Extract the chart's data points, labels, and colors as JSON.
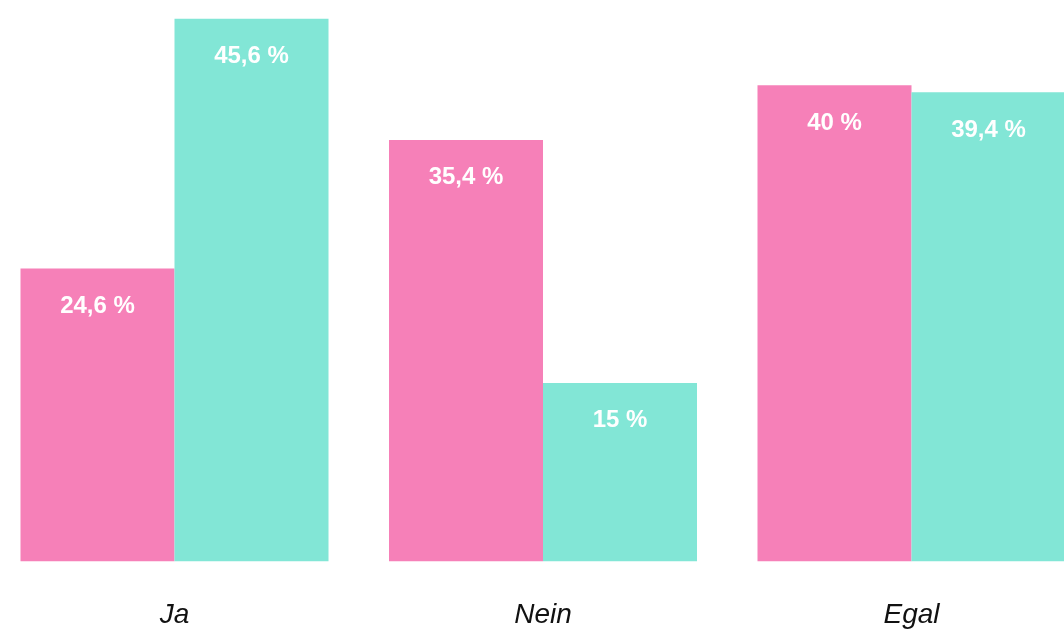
{
  "chart_data": {
    "type": "bar",
    "categories": [
      "Ja",
      "Nein",
      "Egal"
    ],
    "series": [
      {
        "color": "#f680b8",
        "values": [
          24.6,
          35.4,
          40
        ],
        "value_labels": [
          "24,6 %",
          "35,4 %",
          "40 %"
        ]
      },
      {
        "color": "#82e6d6",
        "values": [
          45.6,
          15,
          39.4
        ],
        "value_labels": [
          "45,6 %",
          "15 %",
          "39,4 %"
        ]
      }
    ],
    "grid": false,
    "tick_labels": "x"
  }
}
